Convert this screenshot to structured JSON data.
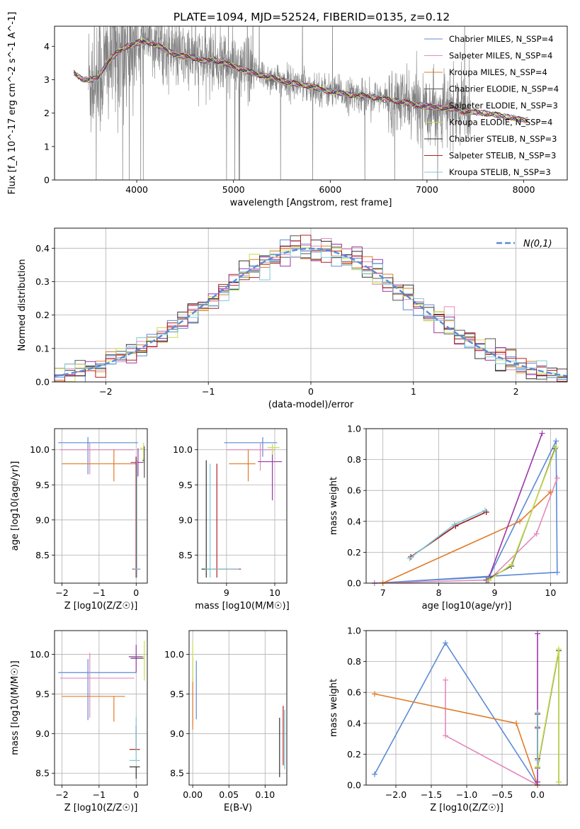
{
  "title": "PLATE=1094, MJD=52524, FIBERID=0135, z=0.12",
  "colors": {
    "chabrier_miles": "#5b8bd6",
    "salpeter_miles": "#e38bbd",
    "kroupa_miles": "#e07b28",
    "chabrier_elodie": "#555555",
    "salpeter_elodie": "#9b37a8",
    "kroupa_elodie": "#c6e04a",
    "chabrier_stelib": "#333333",
    "salpeter_stelib": "#b02020",
    "kroupa_stelib": "#7fc8d8",
    "data": "#808080",
    "normal": "#5b8bd6",
    "grid": "#b0b0b0"
  },
  "chart_data": [
    {
      "id": "spectrum",
      "type": "line",
      "xlabel": "wavelength [Angstrom, rest frame]",
      "ylabel": "Flux [f_λ 10^-17 erg cm^-2 s^-1 A^-1]",
      "xlim": [
        3150,
        8450
      ],
      "ylim": [
        0,
        4.6
      ],
      "xticks": [
        4000,
        5000,
        6000,
        7000,
        8000
      ],
      "yticks": [
        0,
        1,
        2,
        3,
        4
      ],
      "legend_position": "top-right",
      "legend": [
        {
          "text": "Chabrier MILES, N_SSP=4",
          "key": "chabrier_miles"
        },
        {
          "text": "Salpeter MILES, N_SSP=4",
          "key": "salpeter_miles"
        },
        {
          "text": "Kroupa MILES, N_SSP=4",
          "key": "kroupa_miles"
        },
        {
          "text": "Chabrier ELODIE, N_SSP=4",
          "key": "chabrier_elodie"
        },
        {
          "text": "Salpeter ELODIE, N_SSP=3",
          "key": "salpeter_elodie"
        },
        {
          "text": "Kroupa ELODIE, N_SSP=4",
          "key": "kroupa_elodie"
        },
        {
          "text": "Chabrier STELIB, N_SSP=3",
          "key": "chabrier_stelib"
        },
        {
          "text": "Salpeter STELIB, N_SSP=3",
          "key": "salpeter_stelib"
        },
        {
          "text": "Kroupa STELIB, N_SSP=3",
          "key": "kroupa_stelib"
        }
      ],
      "model_continuum": {
        "x": [
          3350,
          3450,
          3550,
          3600,
          3700,
          3800,
          3900,
          4000,
          4100,
          4200,
          4300,
          4400,
          4500,
          4600,
          4700,
          4800,
          4900,
          5000,
          5200,
          5400,
          5600,
          5800,
          6000,
          6200,
          6400,
          6600,
          6800,
          7000,
          7200,
          7400,
          7600,
          7800,
          8000
        ],
        "y": [
          3.2,
          3.0,
          3.0,
          3.05,
          3.55,
          3.8,
          4.0,
          4.1,
          4.15,
          4.05,
          3.9,
          3.75,
          3.7,
          3.65,
          3.55,
          3.6,
          3.5,
          3.4,
          3.2,
          3.05,
          2.9,
          2.8,
          2.65,
          2.55,
          2.5,
          2.4,
          2.3,
          2.2,
          2.15,
          2.05,
          2.0,
          1.9,
          1.8
        ]
      }
    },
    {
      "id": "residuals",
      "type": "line",
      "xlabel": "(data-model)/error",
      "ylabel": "Normed distribution",
      "xlim": [
        -2.5,
        2.5
      ],
      "ylim": [
        0,
        0.46
      ],
      "xticks": [
        -2,
        -1,
        0,
        1,
        2
      ],
      "yticks": [
        0.0,
        0.1,
        0.2,
        0.3,
        0.4
      ],
      "legend_position": "top-right",
      "legend": [
        {
          "text": "N(0,1)",
          "key": "normal"
        }
      ],
      "bin_width": 0.1
    },
    {
      "id": "age_vs_Z",
      "type": "scatter",
      "xlabel": "Z [log10(Z/Z☉)]",
      "ylabel": "age [log10(age/yr)]",
      "xlim": [
        -2.2,
        0.3
      ],
      "ylim": [
        8.1,
        10.3
      ],
      "xticks": [
        -2,
        -1,
        0
      ],
      "yticks": [
        8.5,
        9.0,
        9.5,
        10.0
      ],
      "points": [
        {
          "key": "chabrier_miles",
          "x": -1.3,
          "y": 10.1,
          "xerr": [
            0.8,
            1.35
          ],
          "yerr": [
            0.45,
            0.08
          ]
        },
        {
          "key": "salpeter_miles",
          "x": -1.25,
          "y": 10.0,
          "xerr": [
            0.8,
            1.2
          ],
          "yerr": [
            0.35,
            0.1
          ]
        },
        {
          "key": "kroupa_miles",
          "x": -0.6,
          "y": 9.8,
          "xerr": [
            1.4,
            0.6
          ],
          "yerr": [
            0.25,
            0.2
          ]
        },
        {
          "key": "salpeter_elodie",
          "x": 0.05,
          "y": 9.82,
          "xerr": [
            0.2,
            0.15
          ],
          "yerr": [
            0.2,
            0.2
          ]
        },
        {
          "key": "kroupa_elodie",
          "x": 0.2,
          "y": 10.02,
          "xerr": [
            0.1,
            0.0
          ],
          "yerr": [
            0.2,
            0.08
          ]
        },
        {
          "key": "chabrier_elodie",
          "x": 0.22,
          "y": 9.85,
          "xerr": [
            0.05,
            0.0
          ],
          "yerr": [
            0.25,
            0.2
          ]
        },
        {
          "key": "chabrier_stelib",
          "x": 0.0,
          "y": 8.3,
          "xerr": [
            0.1,
            0.1
          ],
          "yerr": [
            0.12,
            1.6
          ]
        },
        {
          "key": "salpeter_stelib",
          "x": 0.0,
          "y": 8.3,
          "xerr": [
            0.1,
            0.1
          ],
          "yerr": [
            0.12,
            1.6
          ]
        },
        {
          "key": "kroupa_stelib",
          "x": 0.02,
          "y": 8.3,
          "xerr": [
            0.1,
            0.1
          ],
          "yerr": [
            0.12,
            1.55
          ]
        }
      ]
    },
    {
      "id": "age_vs_mass",
      "type": "scatter",
      "xlabel": "mass [log10(M/M☉)]",
      "ylabel": "",
      "xlim": [
        8.4,
        10.25
      ],
      "ylim": [
        8.1,
        10.3
      ],
      "xticks": [
        9,
        10
      ],
      "yticks": [
        8.5,
        9.0,
        9.5,
        10.0
      ],
      "points": [
        {
          "key": "chabrier_miles",
          "x": 9.75,
          "y": 10.1,
          "xerr": [
            0.8,
            0.3
          ],
          "yerr": [
            0.2,
            0.08
          ]
        },
        {
          "key": "salpeter_miles",
          "x": 9.7,
          "y": 10.0,
          "xerr": [
            0.7,
            0.3
          ],
          "yerr": [
            0.3,
            0.1
          ]
        },
        {
          "key": "kroupa_miles",
          "x": 9.45,
          "y": 9.8,
          "xerr": [
            0.4,
            0.15
          ],
          "yerr": [
            0.25,
            0.2
          ]
        },
        {
          "key": "salpeter_elodie",
          "x": 9.95,
          "y": 9.83,
          "xerr": [
            0.3,
            0.2
          ],
          "yerr": [
            0.55,
            0.15
          ]
        },
        {
          "key": "kroupa_elodie",
          "x": 9.95,
          "y": 10.03,
          "xerr": [
            0.1,
            0.15
          ],
          "yerr": [
            0.1,
            0.05
          ]
        },
        {
          "key": "chabrier_stelib",
          "x": 8.58,
          "y": 8.3,
          "xerr": [
            0.1,
            0.1
          ],
          "yerr": [
            0.12,
            1.55
          ]
        },
        {
          "key": "salpeter_stelib",
          "x": 8.8,
          "y": 8.3,
          "xerr": [
            0.1,
            0.5
          ],
          "yerr": [
            0.12,
            1.5
          ]
        },
        {
          "key": "kroupa_stelib",
          "x": 8.66,
          "y": 8.3,
          "xerr": [
            0.1,
            0.6
          ],
          "yerr": [
            0.12,
            1.5
          ]
        }
      ]
    },
    {
      "id": "weight_vs_age",
      "type": "line",
      "xlabel": "age [log10(age/yr)]",
      "ylabel": "mass weight",
      "xlim": [
        6.7,
        10.3
      ],
      "ylim": [
        0,
        1.0
      ],
      "xticks": [
        7,
        8,
        9,
        10
      ],
      "yticks": [
        0.0,
        0.2,
        0.4,
        0.6,
        0.8,
        1.0
      ],
      "series": [
        {
          "key": "chabrier_miles",
          "x": [
            6.85,
            8.9,
            10.1,
            10.12,
            6.85
          ],
          "y": [
            0.0,
            0.04,
            0.92,
            0.07,
            0.0
          ]
        },
        {
          "key": "salpeter_miles",
          "x": [
            6.85,
            8.9,
            9.75,
            10.12
          ],
          "y": [
            0.0,
            0.02,
            0.32,
            0.68
          ]
        },
        {
          "key": "kroupa_miles",
          "x": [
            7.0,
            9.45,
            10.0
          ],
          "y": [
            0.0,
            0.4,
            0.59
          ]
        },
        {
          "key": "chabrier_elodie",
          "x": [
            8.85,
            9.3,
            10.08
          ],
          "y": [
            0.02,
            0.11,
            0.87
          ]
        },
        {
          "key": "salpeter_elodie",
          "x": [
            8.88,
            9.85
          ],
          "y": [
            0.02,
            0.97
          ]
        },
        {
          "key": "kroupa_elodie",
          "x": [
            8.9,
            9.3,
            10.1
          ],
          "y": [
            0.02,
            0.12,
            0.88
          ]
        },
        {
          "key": "chabrier_stelib",
          "x": [
            7.5,
            8.3,
            8.85
          ],
          "y": [
            0.17,
            0.37,
            0.46
          ]
        },
        {
          "key": "salpeter_stelib",
          "x": [
            7.5,
            8.3,
            8.85
          ],
          "y": [
            0.17,
            0.37,
            0.46
          ]
        },
        {
          "key": "kroupa_stelib",
          "x": [
            7.48,
            8.28,
            8.83
          ],
          "y": [
            0.16,
            0.38,
            0.47
          ]
        }
      ]
    },
    {
      "id": "mass_vs_Z",
      "type": "scatter",
      "xlabel": "Z [log10(Z/Z☉)]",
      "ylabel": "mass [log10(M/M☉)]",
      "xlim": [
        -2.2,
        0.3
      ],
      "ylim": [
        8.35,
        10.3
      ],
      "xticks": [
        -2,
        -1,
        0
      ],
      "yticks": [
        8.5,
        9.0,
        9.5,
        10.0
      ],
      "points": [
        {
          "key": "chabrier_miles",
          "x": -1.3,
          "y": 9.77,
          "xerr": [
            0.8,
            1.3
          ],
          "yerr": [
            0.6,
            0.17
          ]
        },
        {
          "key": "salpeter_miles",
          "x": -1.25,
          "y": 9.7,
          "xerr": [
            0.8,
            1.2
          ],
          "yerr": [
            0.5,
            0.32
          ]
        },
        {
          "key": "kroupa_miles",
          "x": -0.6,
          "y": 9.47,
          "xerr": [
            1.4,
            0.3
          ],
          "yerr": [
            0.32,
            0.0
          ]
        },
        {
          "key": "salpeter_elodie",
          "x": 0.0,
          "y": 9.97,
          "xerr": [
            0.2,
            0.2
          ],
          "yerr": [
            0.2,
            0.15
          ]
        },
        {
          "key": "kroupa_elodie",
          "x": 0.22,
          "y": 9.97,
          "xerr": [
            0.05,
            0.0
          ],
          "yerr": [
            0.3,
            0.2
          ]
        },
        {
          "key": "chabrier_elodie",
          "x": 0.05,
          "y": 9.95,
          "xerr": [
            0.2,
            0.15
          ],
          "yerr": [
            0.0,
            0.0
          ]
        },
        {
          "key": "salpeter_stelib",
          "x": 0.0,
          "y": 8.8,
          "xerr": [
            0.18,
            0.1
          ],
          "yerr": [
            0.0,
            0.3
          ]
        },
        {
          "key": "kroupa_stelib",
          "x": 0.0,
          "y": 8.66,
          "xerr": [
            0.18,
            0.1
          ],
          "yerr": [
            0.0,
            0.55
          ]
        },
        {
          "key": "chabrier_stelib",
          "x": 0.0,
          "y": 8.58,
          "xerr": [
            0.18,
            0.1
          ],
          "yerr": [
            0.15,
            0.0
          ]
        }
      ]
    },
    {
      "id": "mass_vs_ebv",
      "type": "scatter",
      "xlabel": "E(B-V)",
      "ylabel": "",
      "xlim": [
        -0.005,
        0.13
      ],
      "ylim": [
        8.35,
        10.3
      ],
      "xticks": [
        0.0,
        0.05,
        0.1
      ],
      "yticks": [
        8.5,
        9.0,
        9.5,
        10.0
      ],
      "points": [
        {
          "key": "chabrier_miles",
          "x": 0.005,
          "y": 9.6,
          "yerr": [
            0.42,
            0.32
          ]
        },
        {
          "key": "salpeter_miles",
          "x": 0.0,
          "y": 9.5,
          "yerr": [
            0.4,
            0.45
          ]
        },
        {
          "key": "kroupa_miles",
          "x": 0.0,
          "y": 9.3,
          "yerr": [
            0.25,
            0.4
          ]
        },
        {
          "key": "kroupa_elodie",
          "x": 0.0,
          "y": 10.0,
          "yerr": [
            0.35,
            0.15
          ]
        },
        {
          "key": "chabrier_stelib",
          "x": 0.12,
          "y": 8.85,
          "yerr": [
            0.4,
            0.35
          ]
        },
        {
          "key": "salpeter_stelib",
          "x": 0.125,
          "y": 9.0,
          "yerr": [
            0.4,
            0.35
          ]
        },
        {
          "key": "kroupa_stelib",
          "x": 0.127,
          "y": 8.95,
          "yerr": [
            0.4,
            0.35
          ]
        }
      ]
    },
    {
      "id": "weight_vs_Z",
      "type": "line",
      "xlabel": "Z [log10(Z/Z☉)]",
      "ylabel": "mass weight",
      "xlim": [
        -2.42,
        0.42
      ],
      "ylim": [
        0,
        1.0
      ],
      "xticks": [
        -2.0,
        -1.5,
        -1.0,
        -0.5,
        0.0
      ],
      "yticks": [
        0.0,
        0.2,
        0.4,
        0.6,
        0.8,
        1.0
      ],
      "series": [
        {
          "key": "chabrier_miles",
          "x": [
            -2.3,
            -1.3,
            0.0,
            0.0
          ],
          "y": [
            0.07,
            0.92,
            0.0,
            0.0
          ]
        },
        {
          "key": "salpeter_miles",
          "x": [
            -1.3,
            -1.3,
            0.0
          ],
          "y": [
            0.68,
            0.32,
            0.0
          ]
        },
        {
          "key": "kroupa_miles",
          "x": [
            -2.3,
            -0.3,
            0.0
          ],
          "y": [
            0.59,
            0.4,
            0.0
          ]
        },
        {
          "key": "chabrier_elodie",
          "x": [
            0.0,
            0.3,
            0.3
          ],
          "y": [
            0.11,
            0.87,
            0.02
          ]
        },
        {
          "key": "salpeter_elodie",
          "x": [
            0.0,
            0.0
          ],
          "y": [
            0.98,
            0.02
          ]
        },
        {
          "key": "kroupa_elodie",
          "x": [
            0.0,
            0.3,
            0.3
          ],
          "y": [
            0.12,
            0.88,
            0.02
          ]
        },
        {
          "key": "chabrier_stelib",
          "x": [
            0.0,
            0.0,
            0.0
          ],
          "y": [
            0.17,
            0.37,
            0.46
          ]
        },
        {
          "key": "salpeter_stelib",
          "x": [
            0.0,
            0.0,
            0.0
          ],
          "y": [
            0.17,
            0.37,
            0.46
          ]
        },
        {
          "key": "kroupa_stelib",
          "x": [
            0.0,
            0.0,
            0.0
          ],
          "y": [
            0.16,
            0.38,
            0.47
          ]
        }
      ]
    }
  ]
}
